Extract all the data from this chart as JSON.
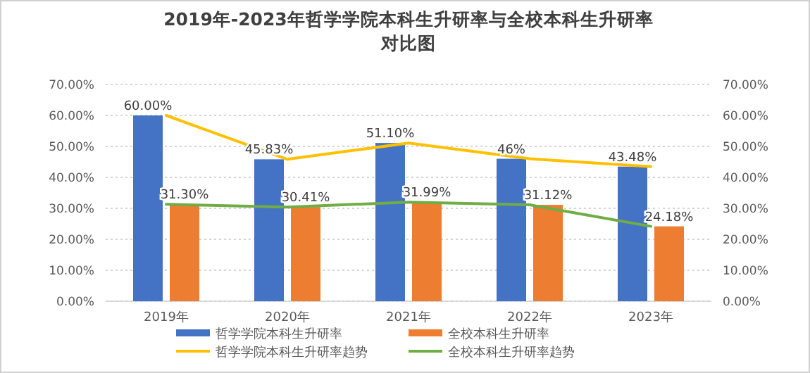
{
  "chart_data": {
    "type": "bar",
    "title": "2019年-2023年哲学学院本科生升研率与全校本科生升研率对比图",
    "categories": [
      "2019年",
      "2020年",
      "2021年",
      "2022年",
      "2023年"
    ],
    "series": [
      {
        "name": "哲学学院本科生升研率",
        "color": "#4472c4",
        "values": [
          60,
          45.83,
          51.1,
          46,
          43.48
        ],
        "value_labels": [
          "60.00%",
          "45.83%",
          "51.10%",
          "46%",
          "43.48%"
        ]
      },
      {
        "name": "全校本科生升研率",
        "color": "#ed7d31",
        "values": [
          31.3,
          30.41,
          31.99,
          31.12,
          24.18
        ],
        "value_labels": [
          "31.30%",
          "30.41%",
          "31.99%",
          "31.12%",
          "24.18%"
        ]
      },
      {
        "name": "哲学学院本科生升研率趋势",
        "type": "line",
        "color": "#ffc000",
        "values": [
          60,
          45.83,
          51.1,
          46,
          43.48
        ]
      },
      {
        "name": "全校本科生升研率趋势",
        "type": "line",
        "color": "#70ad47",
        "values": [
          31.3,
          30.41,
          31.99,
          31.12,
          24.18
        ]
      }
    ],
    "ylim": [
      0,
      70
    ],
    "yticks": [
      {
        "value": 0,
        "label": "0.00%"
      },
      {
        "value": 10,
        "label": "10.00%"
      },
      {
        "value": 20,
        "label": "20.00%"
      },
      {
        "value": 30,
        "label": "30.00%"
      },
      {
        "value": 40,
        "label": "40.00%"
      },
      {
        "value": 50,
        "label": "50.00%"
      },
      {
        "value": 60,
        "label": "60.00%"
      },
      {
        "value": 70,
        "label": "70.00%"
      }
    ],
    "y2lim": [
      0,
      70
    ],
    "y2ticks": [
      {
        "value": 0,
        "label": "0.00%"
      },
      {
        "value": 10,
        "label": "10.00%"
      },
      {
        "value": 20,
        "label": "20.00%"
      },
      {
        "value": 30,
        "label": "30.00%"
      },
      {
        "value": 40,
        "label": "40.00%"
      },
      {
        "value": 50,
        "label": "50.00%"
      },
      {
        "value": 60,
        "label": "60.00%"
      },
      {
        "value": 70,
        "label": "70.00%"
      }
    ],
    "grid": "y",
    "legend": "bottom",
    "marker": "none",
    "line_style": "solid"
  }
}
